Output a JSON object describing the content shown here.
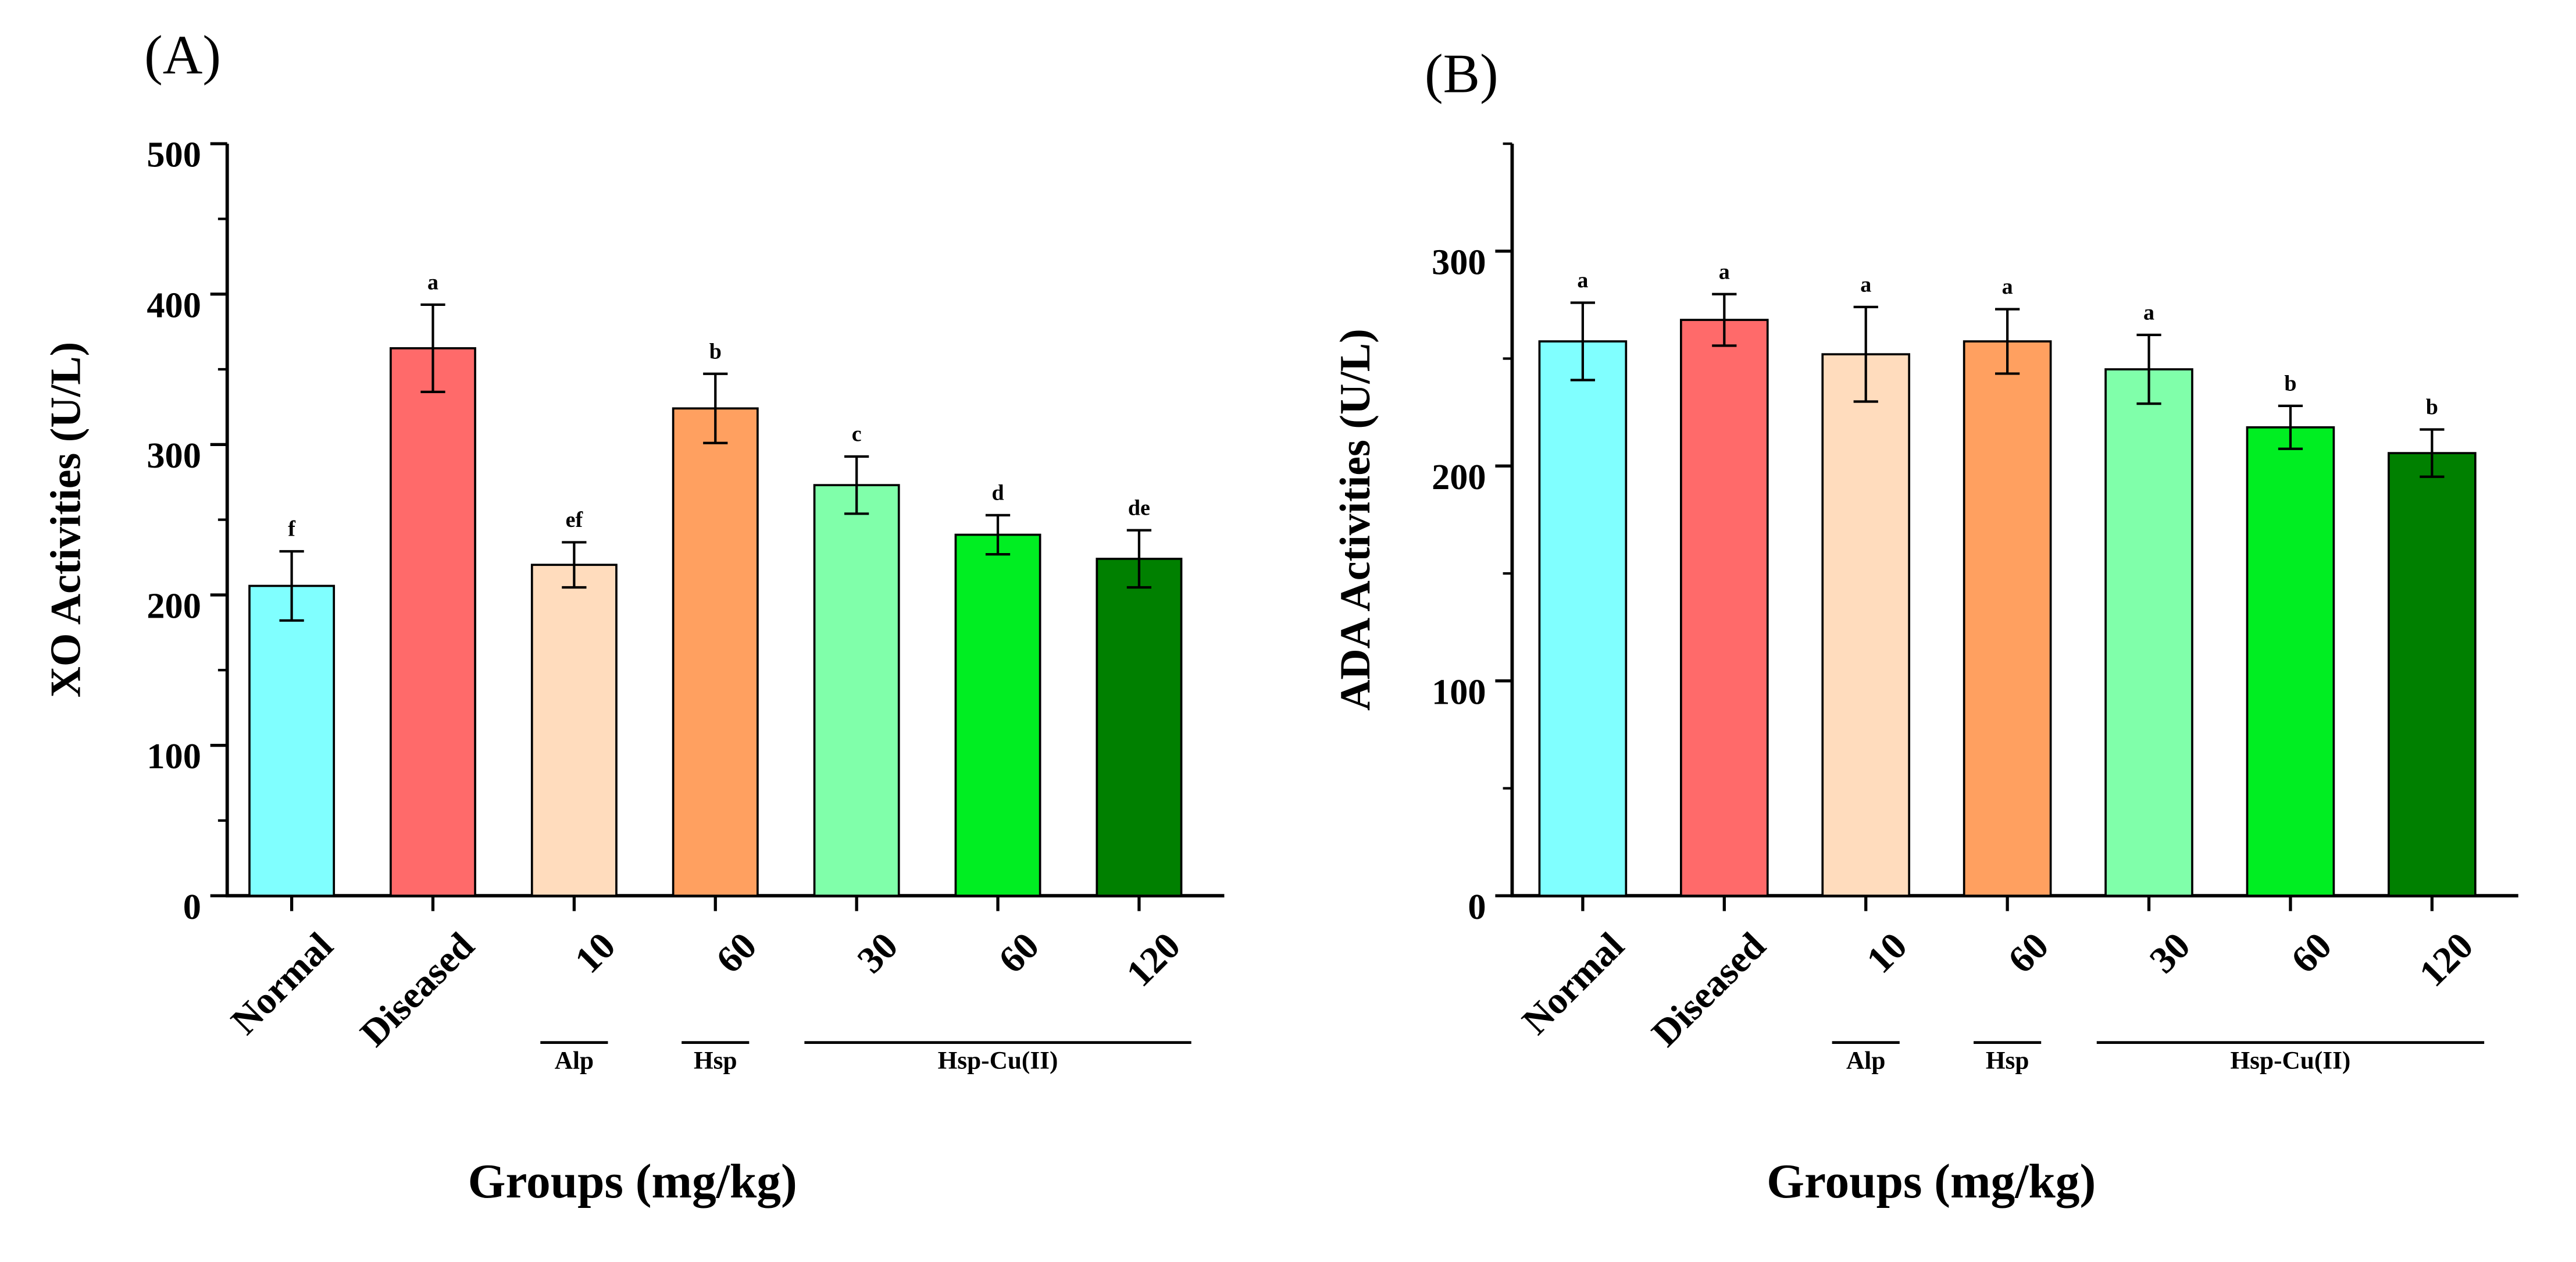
{
  "chart_data": [
    {
      "type": "bar",
      "panel_label": "(A)",
      "title": "",
      "ylabel": "XO Activities (U/L)",
      "xlabel": "Groups (mg/kg)",
      "ylim": [
        0,
        500
      ],
      "yticks": [
        0,
        100,
        200,
        300,
        400,
        500
      ],
      "categories": [
        "Normal",
        "Diseased",
        "10",
        "60",
        "30",
        "60",
        "120"
      ],
      "values": [
        206,
        364,
        220,
        324,
        273,
        240,
        224
      ],
      "errors": [
        23,
        29,
        15,
        23,
        19,
        13,
        19
      ],
      "letters": [
        "f",
        "a",
        "ef",
        "b",
        "c",
        "d",
        "de"
      ],
      "colors": [
        "#80ffff",
        "#ff6a6a",
        "#ffdcbd",
        "#ffa060",
        "#80ffaa",
        "#00ee22",
        "#008000"
      ],
      "groups": [
        {
          "label": "Alp",
          "from": 2,
          "to": 2
        },
        {
          "label": "Hsp",
          "from": 3,
          "to": 3
        },
        {
          "label": "Hsp-Cu(II)",
          "from": 4,
          "to": 6
        }
      ]
    },
    {
      "type": "bar",
      "panel_label": "(B)",
      "title": "",
      "ylabel": "ADA Activities (U/L)",
      "xlabel": "Groups (mg/kg)",
      "ylim": [
        0,
        350
      ],
      "yticks": [
        0,
        100,
        200,
        300
      ],
      "categories": [
        "Normal",
        "Diseased",
        "10",
        "60",
        "30",
        "60",
        "120"
      ],
      "values": [
        258,
        268,
        252,
        258,
        245,
        218,
        206
      ],
      "errors": [
        18,
        12,
        22,
        15,
        16,
        10,
        11
      ],
      "letters": [
        "a",
        "a",
        "a",
        "a",
        "a",
        "b",
        "b"
      ],
      "colors": [
        "#80ffff",
        "#ff6a6a",
        "#ffdcbd",
        "#ffa060",
        "#80ffaa",
        "#00ee22",
        "#008000"
      ],
      "groups": [
        {
          "label": "Alp",
          "from": 2,
          "to": 2
        },
        {
          "label": "Hsp",
          "from": 3,
          "to": 3
        },
        {
          "label": "Hsp-Cu(II)",
          "from": 4,
          "to": 6
        }
      ]
    }
  ]
}
